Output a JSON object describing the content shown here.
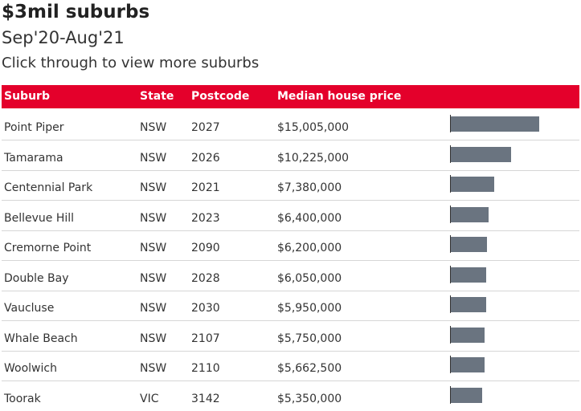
{
  "title": "$3mil suburbs",
  "subtitle": "Sep'20-Aug'21",
  "note": "Click through to view more suburbs",
  "columns": {
    "suburb": "Suburb",
    "state": "State",
    "postcode": "Postcode",
    "price": "Median house price"
  },
  "colors": {
    "header_bg": "#e4002b",
    "bar": "#6a7480"
  },
  "chart_data": {
    "type": "table",
    "columns": [
      "Suburb",
      "State",
      "Postcode",
      "Median house price"
    ],
    "rows": [
      {
        "suburb": "Point Piper",
        "state": "NSW",
        "postcode": "2027",
        "price_label": "$15,005,000",
        "price": 15005000
      },
      {
        "suburb": "Tamarama",
        "state": "NSW",
        "postcode": "2026",
        "price_label": "$10,225,000",
        "price": 10225000
      },
      {
        "suburb": "Centennial Park",
        "state": "NSW",
        "postcode": "2021",
        "price_label": "$7,380,000",
        "price": 7380000
      },
      {
        "suburb": "Bellevue Hill",
        "state": "NSW",
        "postcode": "2023",
        "price_label": "$6,400,000",
        "price": 6400000
      },
      {
        "suburb": "Cremorne Point",
        "state": "NSW",
        "postcode": "2090",
        "price_label": "$6,200,000",
        "price": 6200000
      },
      {
        "suburb": "Double Bay",
        "state": "NSW",
        "postcode": "2028",
        "price_label": "$6,050,000",
        "price": 6050000
      },
      {
        "suburb": "Vaucluse",
        "state": "NSW",
        "postcode": "2030",
        "price_label": "$5,950,000",
        "price": 5950000
      },
      {
        "suburb": "Whale Beach",
        "state": "NSW",
        "postcode": "2107",
        "price_label": "$5,750,000",
        "price": 5750000
      },
      {
        "suburb": "Woolwich",
        "state": "NSW",
        "postcode": "2110",
        "price_label": "$5,662,500",
        "price": 5662500
      },
      {
        "suburb": "Toorak",
        "state": "VIC",
        "postcode": "3142",
        "price_label": "$5,350,000",
        "price": 5350000
      }
    ]
  }
}
